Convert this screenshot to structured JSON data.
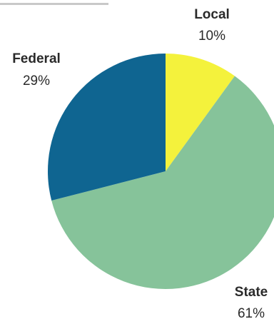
{
  "chart_data": {
    "type": "pie",
    "title": "",
    "slices": [
      {
        "label": "Local",
        "value": 10,
        "value_label": "10%",
        "color": "#f4f23c"
      },
      {
        "label": "State",
        "value": 61,
        "value_label": "61%",
        "color": "#86c39a"
      },
      {
        "label": "Federal",
        "value": 29,
        "value_label": "29%",
        "color": "#0f6591"
      }
    ],
    "start_angle": "12 o'clock",
    "direction": "clockwise",
    "legend": "none (labels placed beside slices)"
  }
}
